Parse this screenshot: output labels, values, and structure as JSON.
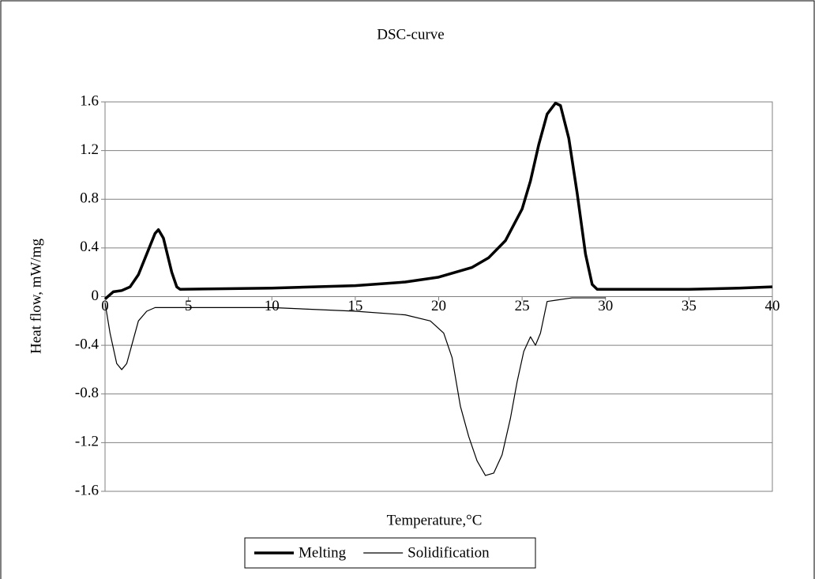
{
  "chart_data": {
    "type": "line",
    "title": "DSC-curve",
    "x_label": "Temperature,°C",
    "y_label": "Heat flow, mW/mg",
    "xlim": [
      0,
      40
    ],
    "xticks": [
      0,
      5,
      10,
      15,
      20,
      25,
      30,
      35,
      40
    ],
    "ylim": [
      -1.6,
      1.6
    ],
    "yticks": [
      1.6,
      1.2,
      0.8,
      0.4,
      0,
      -0.4,
      -0.8,
      -1.2,
      -1.6
    ],
    "grid": true,
    "legend": "bottom",
    "series": [
      {
        "name": "Melting",
        "color": "#000000",
        "width": 3.5,
        "x": [
          0,
          0.5,
          1,
          1.5,
          2,
          2.5,
          3,
          3.2,
          3.5,
          4,
          4.3,
          4.5,
          10,
          15,
          18,
          20,
          22,
          23,
          24,
          25,
          25.5,
          26,
          26.5,
          27,
          27.3,
          27.8,
          28.3,
          28.8,
          29.2,
          29.5,
          35,
          38,
          40
        ],
        "values": [
          -0.02,
          0.04,
          0.05,
          0.08,
          0.18,
          0.35,
          0.52,
          0.55,
          0.48,
          0.2,
          0.08,
          0.06,
          0.07,
          0.09,
          0.12,
          0.16,
          0.24,
          0.32,
          0.46,
          0.72,
          0.95,
          1.25,
          1.5,
          1.59,
          1.57,
          1.3,
          0.85,
          0.35,
          0.1,
          0.06,
          0.06,
          0.07,
          0.08
        ]
      },
      {
        "name": "Solidification",
        "color": "#000000",
        "width": 1.2,
        "x": [
          0,
          0.3,
          0.7,
          1,
          1.3,
          1.7,
          2,
          2.5,
          3,
          5,
          10,
          15,
          18,
          19.5,
          20.3,
          20.8,
          21.3,
          21.8,
          22.3,
          22.8,
          23.3,
          23.8,
          24.3,
          24.7,
          25.1,
          25.5,
          25.8,
          26.1,
          26.5,
          27,
          28,
          30
        ],
        "values": [
          -0.05,
          -0.3,
          -0.55,
          -0.6,
          -0.55,
          -0.35,
          -0.2,
          -0.12,
          -0.09,
          -0.09,
          -0.09,
          -0.12,
          -0.15,
          -0.2,
          -0.3,
          -0.5,
          -0.9,
          -1.15,
          -1.35,
          -1.47,
          -1.45,
          -1.3,
          -1.0,
          -0.7,
          -0.45,
          -0.33,
          -0.4,
          -0.3,
          -0.04,
          -0.03,
          -0.01,
          -0.01
        ]
      }
    ]
  }
}
